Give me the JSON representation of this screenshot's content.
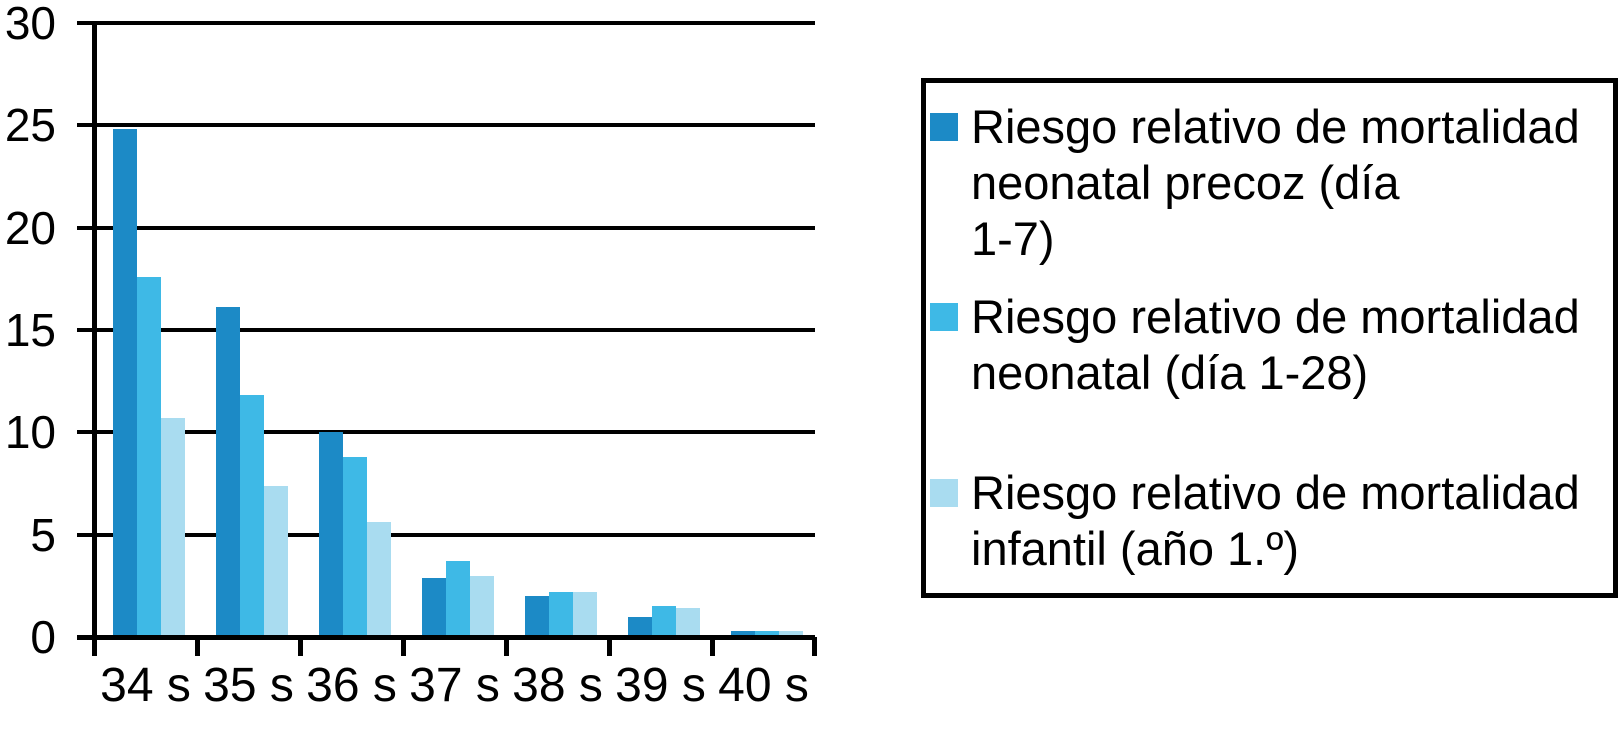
{
  "figure": {
    "background": "#ffffff",
    "text_color": "#000000"
  },
  "chart_data": {
    "type": "bar",
    "title": "",
    "categories": [
      "34 s",
      "35 s",
      "36 s",
      "37 s",
      "38 s",
      "39 s",
      "40 s"
    ],
    "series": [
      {
        "name": "Riesgo relativo de mortalidad neonatal precoz (día 1-7)",
        "color": "#1C8AC6",
        "values": [
          24.8,
          16.1,
          10.0,
          2.9,
          2.0,
          1.0,
          0.3
        ]
      },
      {
        "name": "Riesgo relativo de mortalidad neonatal (día 1-28)",
        "color": "#3EB9E6",
        "values": [
          17.6,
          11.8,
          8.8,
          3.7,
          2.2,
          1.5,
          0.3
        ]
      },
      {
        "name": "Riesgo relativo de mortalidad infantil (año 1.º)",
        "color": "#A9DCF0",
        "values": [
          10.7,
          7.4,
          5.6,
          3.0,
          2.2,
          1.4,
          0.3
        ]
      }
    ],
    "xlabel": "",
    "ylabel": "",
    "ylim": [
      0,
      30
    ],
    "yticks": [
      0,
      5,
      10,
      15,
      20,
      25,
      30
    ],
    "grid": true,
    "gridline_color": "#000000",
    "axis_color": "#000000",
    "legend_position": "right"
  },
  "legend": {
    "border_color": "#000000",
    "entries": [
      {
        "color": "#1C8AC6",
        "lines": [
          "Riesgo relativo de mortalidad",
          "neonatal precoz (día",
          "1-7)"
        ]
      },
      {
        "color": "#3EB9E6",
        "lines": [
          "Riesgo relativo de mortalidad",
          "neonatal (día 1-28)"
        ]
      },
      {
        "color": "#A9DCF0",
        "lines": [
          "Riesgo relativo de mortalidad",
          "infantil (año 1.º)"
        ]
      }
    ]
  }
}
